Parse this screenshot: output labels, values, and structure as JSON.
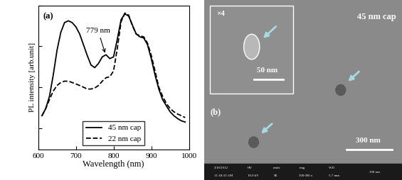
{
  "chart_data": {
    "type": "line",
    "panel_label": "(a)",
    "x_label": "Wavelength (nm)",
    "y_label": "PL intensity [arb.unit]",
    "log": "y",
    "tick_labels": "x",
    "legend": "lower center",
    "xlim": [
      600,
      1000
    ],
    "xticks": [
      600,
      700,
      800,
      900,
      1000
    ],
    "ylim": [
      0.3,
      1000
    ],
    "yticks": [
      1,
      10,
      100,
      1000
    ],
    "annotation": {
      "text": "779 nm",
      "x": 779,
      "y": 62
    },
    "x": [
      610,
      620,
      630,
      640,
      650,
      660,
      670,
      680,
      690,
      700,
      710,
      720,
      730,
      740,
      750,
      760,
      770,
      780,
      790,
      800,
      810,
      820,
      830,
      840,
      850,
      860,
      870,
      880,
      890,
      900,
      910,
      920,
      930,
      940,
      950,
      960,
      970,
      980,
      990
    ],
    "series": [
      {
        "name": "45 nm cap",
        "color": "#000000",
        "line_style": "solid",
        "values": [
          2,
          3,
          6,
          20,
          80,
          220,
          380,
          420,
          380,
          300,
          200,
          110,
          60,
          35,
          30,
          38,
          55,
          62,
          50,
          55,
          150,
          450,
          620,
          550,
          330,
          200,
          170,
          160,
          110,
          50,
          20,
          9,
          5,
          3.5,
          2.5,
          2,
          1.7,
          1.5,
          1.4
        ]
      },
      {
        "name": "22 nm cap",
        "color": "#000000",
        "line_style": "dashed",
        "values": [
          2,
          3,
          5,
          8,
          11,
          13,
          14,
          14,
          13,
          12,
          11,
          10,
          9,
          9,
          9.5,
          11,
          14,
          17,
          18,
          25,
          90,
          400,
          650,
          580,
          320,
          200,
          180,
          170,
          120,
          60,
          25,
          10,
          6,
          4,
          3,
          2.5,
          2.2,
          2,
          1.8
        ]
      }
    ]
  },
  "image_panel": {
    "panel_label": "(b)",
    "title": "45 nm cap",
    "inset_zoom": "×4",
    "inset_scale": "50 nm",
    "scale": "300 nm",
    "info_bar": [
      [
        "2/10/2012",
        "11:18:33 AM"
      ],
      [
        "HV",
        "10.0 kV"
      ],
      [
        "mode",
        "SE"
      ],
      [
        "mag",
        "300 000 x"
      ],
      [
        "WD",
        "5.7 mm"
      ]
    ]
  }
}
